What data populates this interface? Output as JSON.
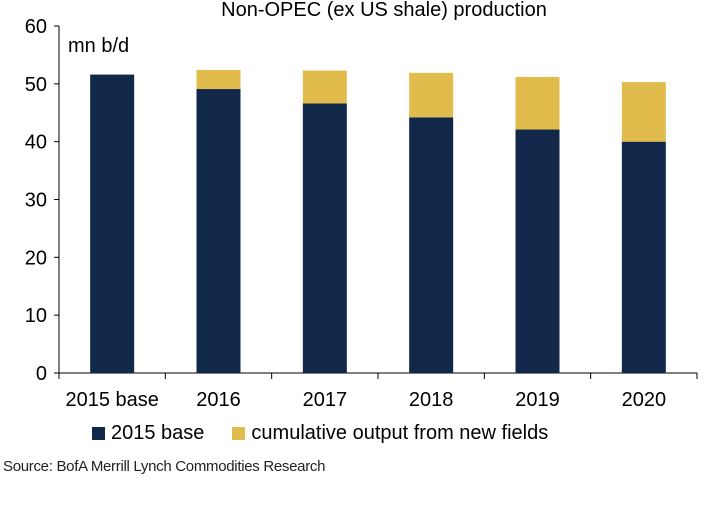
{
  "chart_data": {
    "type": "bar",
    "stacked": true,
    "title": "Non-OPEC (ex US shale) production",
    "ylabel": "mn b/d",
    "xlabel": "",
    "ylim": [
      0,
      60
    ],
    "yticks": [
      0,
      10,
      20,
      30,
      40,
      50,
      60
    ],
    "categories": [
      "2015 base",
      "2016",
      "2017",
      "2018",
      "2019",
      "2020"
    ],
    "series": [
      {
        "name": "2015 base",
        "color": "#12284a",
        "values": [
          51.6,
          49.1,
          46.6,
          44.2,
          42.1,
          40.0
        ]
      },
      {
        "name": "cumulative output from new fields",
        "color": "#e1bb4b",
        "values": [
          0,
          3.3,
          5.7,
          7.7,
          9.1,
          10.3
        ]
      }
    ],
    "grid": false,
    "legend_position": "bottom"
  },
  "source": "Source: BofA Merrill Lynch Commodities Research"
}
